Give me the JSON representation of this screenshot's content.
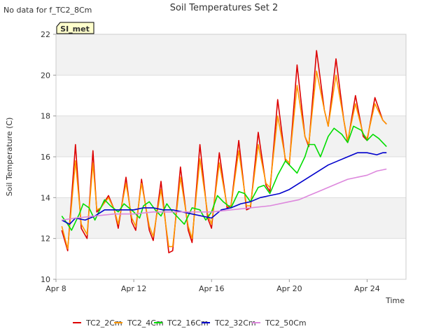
{
  "header": {
    "no_data_note": "No data for f_TC2_8Cm"
  },
  "site_badge": {
    "label": "SI_met"
  },
  "chart_data": {
    "type": "line",
    "title": "Soil Temperatures Set 2",
    "xlabel": "Time",
    "ylabel": "Soil Temperature (C)",
    "x_unit": "days since Apr 8",
    "xlim": [
      0,
      18
    ],
    "ylim": [
      10,
      22
    ],
    "y_ticks": [
      10,
      12,
      14,
      16,
      18,
      20,
      22
    ],
    "x_ticks": [
      {
        "label": "Apr 8",
        "value": 0
      },
      {
        "label": "Apr 12",
        "value": 4
      },
      {
        "label": "Apr 16",
        "value": 8
      },
      {
        "label": "Apr 20",
        "value": 12
      },
      {
        "label": "Apr 24",
        "value": 16
      }
    ],
    "grid": true,
    "legend_position": "bottom",
    "series": [
      {
        "name": "TC2_2Cm",
        "color": "#dd0000",
        "x": [
          0.3,
          0.6,
          1.0,
          1.3,
          1.6,
          1.9,
          2.1,
          2.3,
          2.7,
          3.0,
          3.2,
          3.6,
          3.9,
          4.1,
          4.4,
          4.8,
          5.0,
          5.4,
          5.8,
          6.0,
          6.4,
          6.8,
          7.0,
          7.4,
          7.8,
          8.0,
          8.4,
          8.8,
          9.0,
          9.4,
          9.8,
          10.0,
          10.4,
          10.8,
          11.0,
          11.4,
          11.8,
          12.0,
          12.4,
          12.8,
          13.0,
          13.4,
          13.8,
          14.0,
          14.4,
          14.8,
          15.0,
          15.4,
          15.8,
          16.0,
          16.4,
          16.8,
          17.0
        ],
        "y": [
          12.4,
          11.4,
          16.6,
          12.5,
          12.0,
          16.3,
          13.3,
          13.5,
          14.1,
          13.4,
          12.5,
          15.0,
          12.8,
          12.4,
          14.9,
          12.4,
          11.9,
          14.8,
          11.3,
          11.4,
          15.5,
          12.4,
          11.8,
          16.6,
          13.0,
          12.5,
          16.2,
          13.5,
          13.6,
          16.8,
          13.4,
          13.5,
          17.2,
          14.6,
          14.3,
          18.8,
          15.8,
          15.6,
          20.5,
          17.0,
          16.5,
          21.2,
          18.3,
          17.5,
          20.8,
          17.8,
          16.7,
          19.0,
          17.0,
          16.8,
          18.9,
          17.8,
          17.6
        ]
      },
      {
        "name": "TC2_4Cm",
        "color": "#ff9900",
        "x": [
          0.3,
          0.6,
          1.0,
          1.3,
          1.6,
          1.9,
          2.1,
          2.3,
          2.7,
          3.0,
          3.2,
          3.6,
          3.9,
          4.1,
          4.4,
          4.8,
          5.0,
          5.4,
          5.8,
          6.0,
          6.4,
          6.8,
          7.0,
          7.4,
          7.8,
          8.0,
          8.4,
          8.8,
          9.0,
          9.4,
          9.8,
          10.0,
          10.4,
          10.8,
          11.0,
          11.4,
          11.8,
          12.0,
          12.4,
          12.8,
          13.0,
          13.4,
          13.8,
          14.0,
          14.4,
          14.8,
          15.0,
          15.4,
          15.8,
          16.0,
          16.4,
          16.8,
          17.0
        ],
        "y": [
          12.6,
          11.5,
          15.8,
          12.7,
          12.2,
          15.7,
          13.4,
          13.5,
          14.0,
          13.4,
          12.7,
          14.7,
          13.0,
          12.6,
          14.7,
          12.6,
          12.1,
          14.4,
          11.6,
          11.6,
          15.0,
          12.6,
          12.0,
          15.9,
          13.2,
          12.7,
          15.7,
          13.6,
          13.6,
          16.3,
          13.6,
          13.6,
          16.6,
          14.7,
          14.5,
          18.0,
          15.9,
          15.7,
          19.5,
          17.0,
          16.6,
          20.2,
          18.3,
          17.5,
          20.0,
          17.8,
          16.8,
          18.6,
          17.1,
          16.9,
          18.6,
          17.8,
          17.6
        ]
      },
      {
        "name": "TC2_16Cm",
        "color": "#00dd00",
        "x": [
          0.3,
          0.6,
          0.8,
          1.2,
          1.4,
          1.7,
          2.0,
          2.2,
          2.5,
          2.8,
          3.2,
          3.5,
          4.0,
          4.3,
          4.5,
          4.8,
          5.1,
          5.4,
          5.7,
          6.0,
          6.3,
          6.6,
          7.0,
          7.4,
          7.7,
          8.0,
          8.3,
          8.6,
          9.0,
          9.4,
          9.7,
          10.0,
          10.4,
          10.7,
          11.0,
          11.4,
          11.8,
          12.0,
          12.4,
          12.8,
          13.0,
          13.3,
          13.6,
          14.0,
          14.3,
          14.7,
          15.0,
          15.3,
          15.7,
          16.0,
          16.3,
          16.6,
          17.0
        ],
        "y": [
          13.1,
          12.7,
          12.4,
          13.2,
          13.7,
          13.5,
          12.9,
          13.3,
          13.9,
          13.6,
          13.3,
          13.7,
          13.3,
          13.0,
          13.6,
          13.8,
          13.4,
          13.1,
          13.7,
          13.3,
          13.0,
          12.7,
          13.5,
          13.4,
          12.9,
          13.3,
          14.1,
          13.8,
          13.5,
          14.3,
          14.2,
          13.8,
          14.5,
          14.6,
          14.2,
          15.1,
          15.8,
          15.6,
          15.2,
          16.0,
          16.6,
          16.6,
          16.0,
          17.0,
          17.4,
          17.1,
          16.7,
          17.5,
          17.3,
          16.8,
          17.1,
          16.9,
          16.5
        ]
      },
      {
        "name": "TC2_32Cm",
        "color": "#0000cc",
        "x": [
          0.3,
          0.7,
          1.0,
          1.5,
          2.0,
          2.5,
          3.0,
          3.5,
          4.0,
          4.5,
          5.0,
          5.5,
          6.0,
          6.5,
          7.0,
          7.5,
          8.0,
          8.5,
          9.0,
          9.5,
          10.0,
          10.5,
          11.0,
          11.5,
          12.0,
          12.5,
          13.0,
          13.5,
          14.0,
          14.5,
          15.0,
          15.5,
          16.0,
          16.5,
          16.8,
          17.0
        ],
        "y": [
          12.9,
          12.7,
          13.0,
          12.9,
          13.1,
          13.4,
          13.4,
          13.4,
          13.4,
          13.5,
          13.5,
          13.4,
          13.4,
          13.3,
          13.2,
          13.1,
          13.0,
          13.4,
          13.5,
          13.7,
          13.8,
          14.0,
          14.1,
          14.2,
          14.4,
          14.7,
          15.0,
          15.3,
          15.6,
          15.8,
          16.0,
          16.2,
          16.2,
          16.1,
          16.2,
          16.2
        ]
      },
      {
        "name": "TC2_50Cm",
        "color": "#dd88dd",
        "x": [
          0.3,
          1.0,
          2.0,
          3.0,
          4.0,
          5.0,
          6.0,
          7.0,
          8.0,
          9.0,
          10.0,
          11.0,
          12.0,
          12.5,
          13.0,
          13.5,
          14.0,
          14.5,
          15.0,
          15.5,
          16.0,
          16.5,
          17.0
        ],
        "y": [
          12.9,
          13.0,
          13.1,
          13.2,
          13.2,
          13.3,
          13.3,
          13.3,
          13.3,
          13.4,
          13.5,
          13.6,
          13.8,
          13.9,
          14.1,
          14.3,
          14.5,
          14.7,
          14.9,
          15.0,
          15.1,
          15.3,
          15.4
        ]
      }
    ]
  }
}
